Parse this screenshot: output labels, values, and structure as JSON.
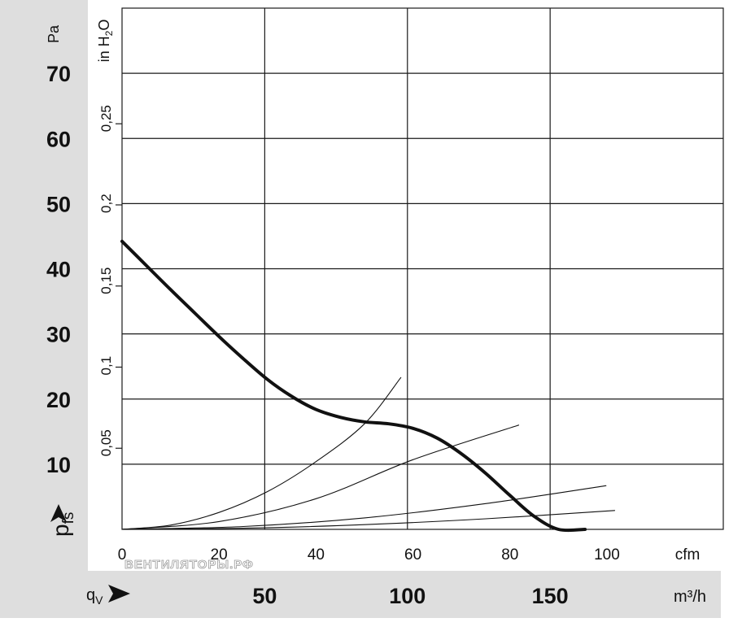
{
  "chart_data": {
    "type": "line",
    "title": "",
    "x_axis": {
      "label": "cfm",
      "range": [
        0,
        124
      ],
      "ticks": [
        0,
        20,
        40,
        60,
        80,
        100
      ],
      "tick_labels": [
        "0",
        "20",
        "40",
        "60",
        "80",
        "100"
      ]
    },
    "x_axis_secondary": {
      "label_symbol": "q",
      "label_subscript": "V",
      "unit": "m³/h",
      "ticks": [
        50,
        100,
        150
      ],
      "tick_labels": [
        "50",
        "100",
        "150"
      ]
    },
    "y_axis": {
      "label_symbol": "p",
      "label_subscript": "fs",
      "unit": "Pa",
      "range": [
        0,
        80
      ],
      "ticks": [
        10,
        20,
        30,
        40,
        50,
        60,
        70
      ],
      "tick_labels": [
        "10",
        "20",
        "30",
        "40",
        "50",
        "60",
        "70"
      ]
    },
    "y_axis_secondary": {
      "unit_prefix": "in H",
      "unit_subscript": "2",
      "unit_suffix": "O",
      "tick_values_pa": [
        12.45,
        24.9,
        37.35,
        49.8,
        62.25
      ],
      "tick_labels": [
        "0,05",
        "0,1",
        "0,15",
        "0,2",
        "0,25"
      ]
    },
    "grid": true,
    "series": [
      {
        "role": "fan-curve",
        "x": [
          0,
          5,
          10,
          15,
          20,
          25,
          30,
          35,
          40,
          45,
          50,
          55,
          60,
          65,
          70,
          75,
          80,
          85,
          90,
          95.5
        ],
        "y": [
          44.2,
          40.5,
          36.8,
          33.2,
          29.6,
          26.2,
          23.0,
          20.4,
          18.4,
          17.2,
          16.5,
          16.2,
          15.5,
          14.0,
          11.6,
          8.6,
          5.2,
          2.0,
          0,
          0
        ]
      },
      {
        "role": "system-curve",
        "x": [
          0,
          10,
          20,
          30,
          40,
          50,
          57.5
        ],
        "y": [
          0,
          0.65,
          2.6,
          5.8,
          10.4,
          16.2,
          23.3
        ]
      },
      {
        "role": "system-curve",
        "x": [
          0,
          20,
          40,
          60,
          81.8
        ],
        "y": [
          0,
          1.2,
          4.7,
          10.7,
          16.0
        ]
      },
      {
        "role": "system-curve",
        "x": [
          0,
          25,
          50,
          75,
          99.8
        ],
        "y": [
          0,
          0.44,
          1.76,
          3.96,
          6.7
        ]
      },
      {
        "role": "system-curve",
        "x": [
          0,
          25,
          50,
          75,
          101.6
        ],
        "y": [
          0,
          0.18,
          0.72,
          1.62,
          2.9
        ]
      }
    ]
  },
  "watermark": "ВЕНТИЛЯТОРЫ.РФ"
}
